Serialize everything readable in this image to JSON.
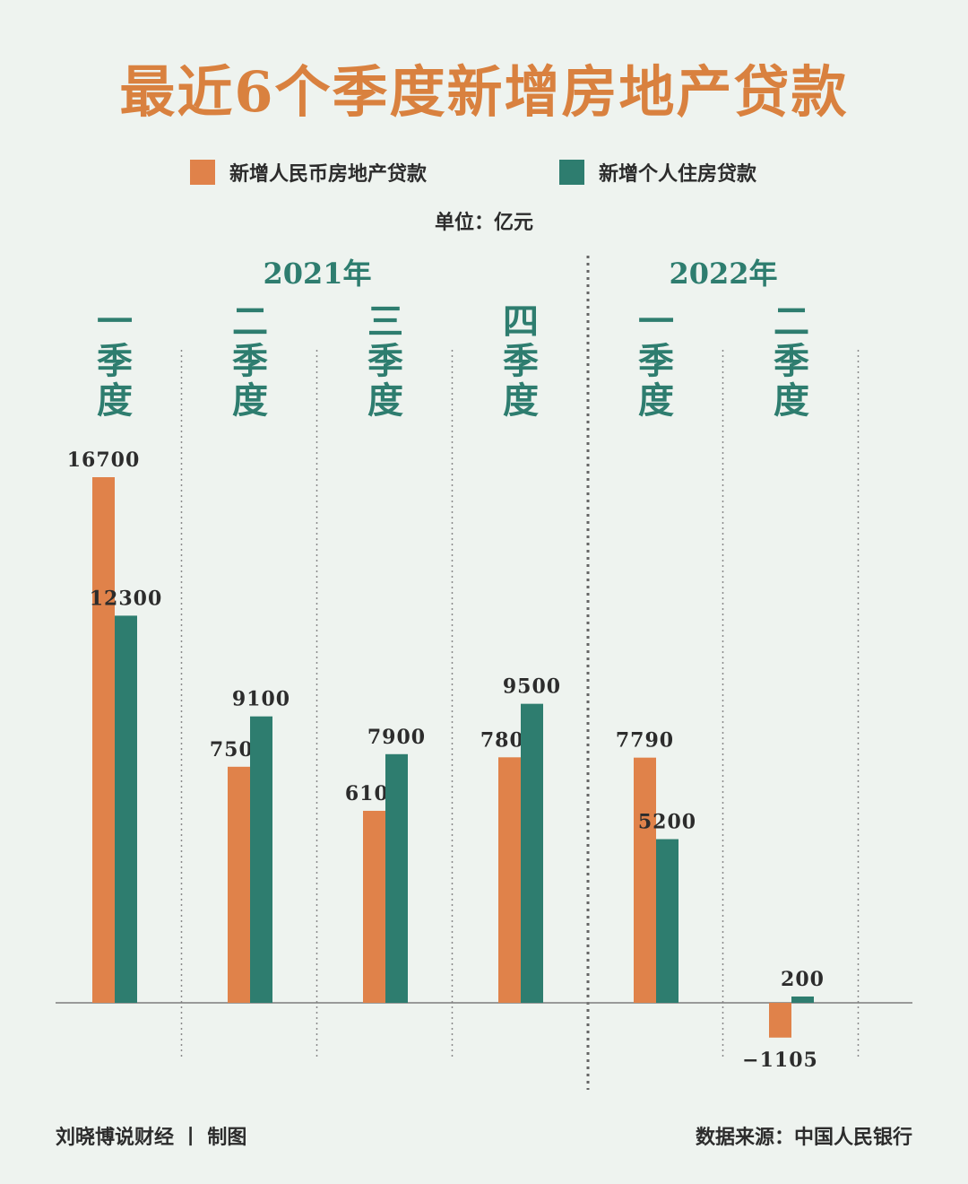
{
  "title": "最近6个季度新增房地产贷款",
  "legend": [
    {
      "label": "新增人民币房地产贷款",
      "color": "#e0824a"
    },
    {
      "label": "新增个人住房贷款",
      "color": "#2e7d6f"
    }
  ],
  "unit": "单位：亿元",
  "footer": {
    "left": "刘晓博说财经 丨 制图",
    "right": "数据来源：中国人民银行"
  },
  "chart_data": {
    "type": "bar",
    "years": [
      {
        "label": "2021年",
        "quarters": 4
      },
      {
        "label": "2022年",
        "quarters": 2
      }
    ],
    "categories": [
      "一季度",
      "二季度",
      "三季度",
      "四季度",
      "一季度",
      "二季度"
    ],
    "series": [
      {
        "name": "新增人民币房地产贷款",
        "color": "#e0824a",
        "values": [
          16700,
          7500,
          6100,
          7800,
          7790,
          -1105
        ]
      },
      {
        "name": "新增个人住房贷款",
        "color": "#2e7d6f",
        "values": [
          12300,
          9100,
          7900,
          9500,
          5200,
          200
        ]
      }
    ],
    "value_labels": [
      [
        "16700",
        "7500",
        "6100",
        "7800",
        "7790",
        "−1105"
      ],
      [
        "12300",
        "9100",
        "7900",
        "9500",
        "5200",
        "200"
      ]
    ],
    "category_color": "#2e7d6f",
    "year_color": "#2e7d6f"
  }
}
